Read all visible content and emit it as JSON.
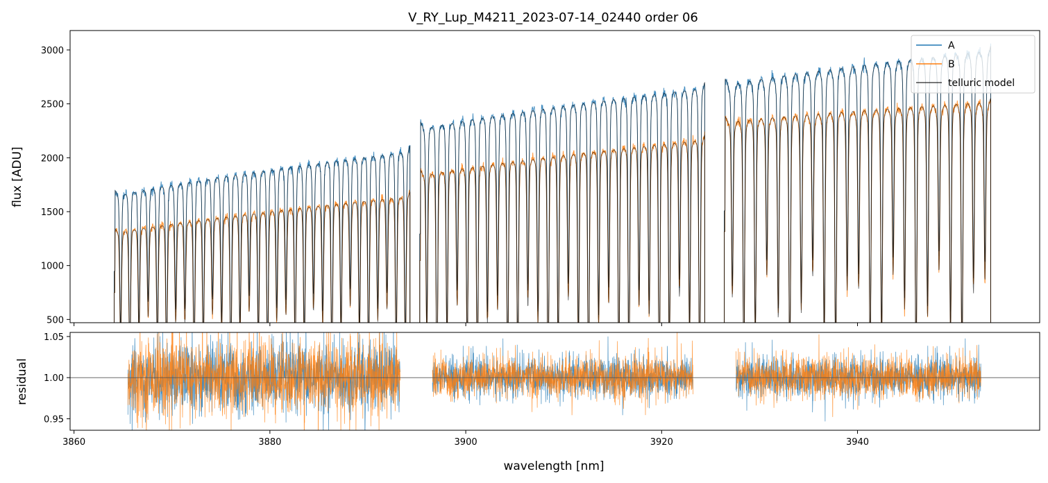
{
  "chart_data": {
    "title": "V_RY_Lup_M4211_2023-07-14_02440  order 06",
    "xlabel": "wavelength [nm]",
    "xlim": [
      3859.6,
      3958.6
    ],
    "xticks": [
      3860,
      3880,
      3900,
      3920,
      3940
    ],
    "xtick_labels": [
      "3860",
      "3880",
      "3900",
      "3920",
      "3940"
    ],
    "colors": {
      "A": "#1f77b4",
      "B": "#ff7f0e",
      "model": "#000000"
    },
    "panels": [
      {
        "name": "flux",
        "type": "line",
        "ylabel": "flux [ADU]",
        "ylim": [
          470,
          3180
        ],
        "yticks": [
          500,
          1000,
          1500,
          2000,
          2500,
          3000
        ],
        "ytick_labels": [
          "500",
          "1000",
          "1500",
          "2000",
          "2500",
          "3000"
        ],
        "legend": {
          "placement": "top-right",
          "entries": [
            "A",
            "B",
            "telluric model"
          ]
        },
        "segments": [
          {
            "x_start": 3864.1,
            "x_end": 3894.3,
            "A_continuum": [
              1720,
              2170
            ],
            "B_continuum": [
              1360,
              1730
            ],
            "n_lines": 32,
            "line_depth": [
              0.55,
              0.85
            ]
          },
          {
            "x_start": 3895.3,
            "x_end": 3924.4,
            "A_continuum": [
              2350,
              2760
            ],
            "B_continuum": [
              1900,
              2260
            ],
            "n_lines": 28,
            "line_depth": [
              0.6,
              0.95
            ]
          },
          {
            "x_start": 3926.4,
            "x_end": 3953.6,
            "A_continuum": [
              2740,
              3080
            ],
            "B_continuum": [
              2390,
              2590
            ],
            "n_lines": 23,
            "line_depth": [
              0.55,
              0.9
            ]
          }
        ],
        "series": [
          {
            "name": "A",
            "color": "#1f77b4"
          },
          {
            "name": "B",
            "color": "#ff7f0e"
          },
          {
            "name": "telluric model",
            "color": "#000000"
          }
        ]
      },
      {
        "name": "residual",
        "type": "line",
        "ylabel": "residual",
        "ylim": [
          0.936,
          1.055
        ],
        "yticks": [
          0.95,
          1.0,
          1.05
        ],
        "ytick_labels": [
          "0.95",
          "1.00",
          "1.05"
        ],
        "reference_line": 1.0,
        "segments": [
          {
            "x_start": 3865.5,
            "x_end": 3893.3,
            "noise_sigma": 0.022
          },
          {
            "x_start": 3896.6,
            "x_end": 3923.2,
            "noise_sigma": 0.012
          },
          {
            "x_start": 3927.6,
            "x_end": 3952.6,
            "noise_sigma": 0.012
          }
        ],
        "series": [
          {
            "name": "A",
            "color": "#1f77b4"
          },
          {
            "name": "B",
            "color": "#ff7f0e"
          }
        ]
      }
    ]
  }
}
